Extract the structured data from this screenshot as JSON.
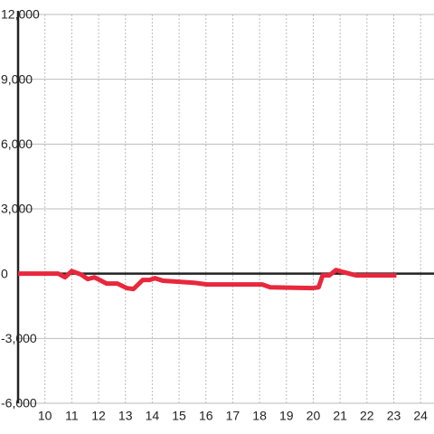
{
  "chart_data": {
    "type": "line",
    "x": [
      9,
      10.5,
      10.75,
      11.0,
      11.35,
      11.6,
      11.85,
      12.3,
      12.7,
      13.05,
      13.3,
      13.65,
      13.9,
      14.1,
      14.4,
      15.05,
      15.55,
      16.05,
      18.1,
      18.4,
      19.95,
      20.2,
      20.35,
      20.6,
      20.85,
      21.1,
      21.6,
      23.1
    ],
    "series": [
      {
        "color": "#e8283c",
        "values": [
          0,
          0,
          -170,
          120,
          -40,
          -250,
          -170,
          -460,
          -460,
          -670,
          -710,
          -290,
          -290,
          -210,
          -330,
          -380,
          -420,
          -500,
          -500,
          -630,
          -670,
          -630,
          -80,
          -80,
          170,
          80,
          -80,
          -80
        ]
      }
    ],
    "xlim": [
      9,
      24.5
    ],
    "xticks": [
      10,
      11,
      12,
      13,
      14,
      15,
      16,
      17,
      18,
      19,
      20,
      21,
      22,
      23,
      24
    ],
    "ylim": [
      -6000,
      12000
    ],
    "yticks": [
      {
        "value": -6000,
        "label": "-6,000"
      },
      {
        "value": -3000,
        "label": "-3,000"
      },
      0,
      {
        "value": 3000,
        "label": "3,000"
      },
      {
        "value": 6000,
        "label": "6,000"
      },
      {
        "value": 9000,
        "label": "9,000"
      },
      {
        "value": 12000,
        "label": "12,000"
      }
    ],
    "grid": true
  }
}
